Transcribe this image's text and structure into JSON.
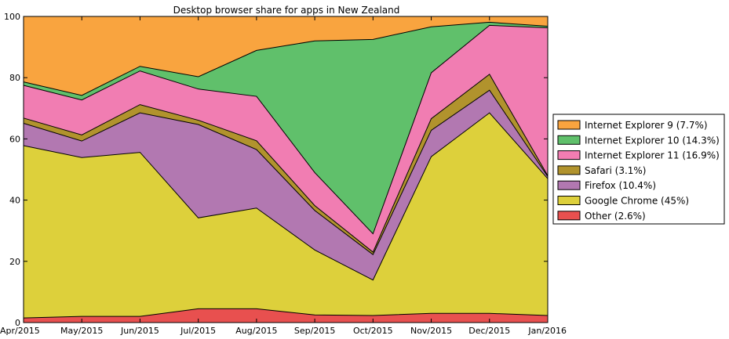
{
  "chart_data": {
    "type": "area",
    "stacked": true,
    "title": "Desktop browser share for apps in New Zealand",
    "xlabel": "",
    "ylabel": "",
    "ylim": [
      0,
      100
    ],
    "yticks": [
      0,
      20,
      40,
      60,
      80,
      100
    ],
    "categories": [
      "Apr/2015",
      "May/2015",
      "Jun/2015",
      "Jul/2015",
      "Aug/2015",
      "Sep/2015",
      "Oct/2015",
      "Nov/2015",
      "Dec/2015",
      "Jan/2016"
    ],
    "legend_position": "right",
    "series": [
      {
        "name": "Other (2.6%)",
        "color": "#e8504f",
        "values": [
          1.5,
          2.0,
          2.0,
          4.5,
          4.5,
          2.5,
          2.3,
          3.0,
          3.0,
          2.3
        ]
      },
      {
        "name": "Google Chrome (45%)",
        "color": "#ddd03b",
        "values": [
          56.3,
          51.9,
          53.6,
          29.7,
          32.9,
          21.2,
          11.6,
          51.2,
          65.5,
          44.7
        ]
      },
      {
        "name": "Firefox (10.4%)",
        "color": "#b278b1",
        "values": [
          7.3,
          5.4,
          12.9,
          30.5,
          19.1,
          12.9,
          8.3,
          8.6,
          7.4,
          0.7
        ]
      },
      {
        "name": "Safari (3.1%)",
        "color": "#b1932d",
        "values": [
          1.7,
          2.0,
          2.7,
          1.4,
          2.9,
          1.6,
          0.8,
          3.8,
          5.2,
          0.3
        ]
      },
      {
        "name": "Internet Explorer 11 (16.9%)",
        "color": "#f17db2",
        "values": [
          10.7,
          11.4,
          11.0,
          10.2,
          14.5,
          10.8,
          6.0,
          15.0,
          16.0,
          48.3
        ]
      },
      {
        "name": "Internet Explorer 10 (14.3%)",
        "color": "#60c06b",
        "values": [
          1.1,
          1.5,
          1.5,
          4.0,
          15.0,
          43.0,
          63.5,
          15.0,
          1.0,
          0.5
        ]
      },
      {
        "name": "Internet Explorer 9 (7.7%)",
        "color": "#f9a43f",
        "values": [
          21.4,
          25.8,
          16.3,
          19.7,
          11.1,
          8.0,
          7.5,
          3.4,
          1.9,
          3.2
        ]
      }
    ]
  }
}
